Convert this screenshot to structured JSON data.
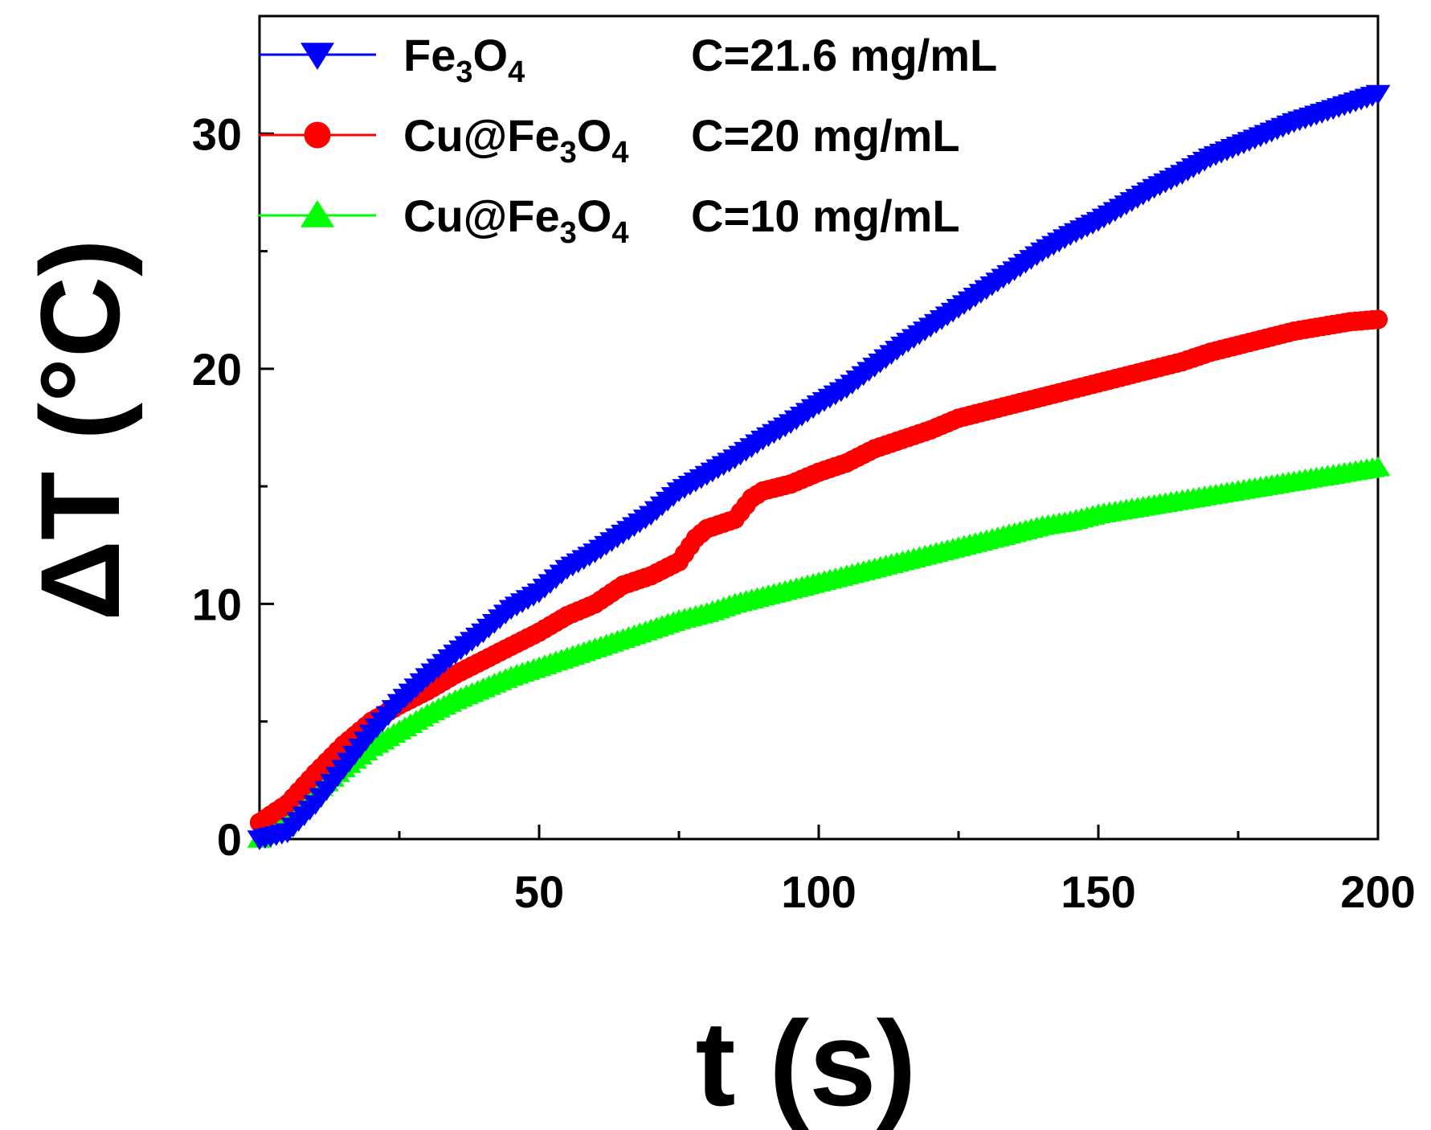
{
  "chart_data": {
    "type": "line",
    "xlabel": "t (s)",
    "ylabel": "ΔT (°C)",
    "xlim": [
      0,
      200
    ],
    "ylim": [
      0,
      35
    ],
    "x_ticks": [
      50,
      100,
      150,
      200
    ],
    "x_tick_labels": [
      "50",
      "100",
      "150",
      "200"
    ],
    "x_minor_ticks": [
      25,
      75,
      125,
      175
    ],
    "y_ticks": [
      0,
      10,
      20,
      30
    ],
    "y_tick_labels": [
      "0",
      "10",
      "20",
      "30"
    ],
    "y_minor_ticks": [
      5,
      15,
      25
    ],
    "grid": false,
    "legend_position": "top-left",
    "series": [
      {
        "name": "Fe3O4",
        "legend_label": {
          "base": "Fe",
          "sub1": "3",
          "mid": "O",
          "sub2": "4"
        },
        "concentration": "C=21.6 mg/mL",
        "color": "#0000ff",
        "marker": "triangle-down",
        "x": [
          0,
          5,
          10,
          15,
          20,
          25,
          30,
          35,
          40,
          45,
          50,
          55,
          60,
          65,
          70,
          75,
          80,
          85,
          90,
          95,
          100,
          105,
          110,
          115,
          120,
          125,
          130,
          135,
          140,
          145,
          150,
          155,
          160,
          165,
          170,
          175,
          180,
          185,
          190,
          195,
          200
        ],
        "y": [
          0,
          0.3,
          1.5,
          3.0,
          4.5,
          5.8,
          6.9,
          7.9,
          8.8,
          9.8,
          10.5,
          11.5,
          12.2,
          13.0,
          13.8,
          14.8,
          15.5,
          16.2,
          17.0,
          17.7,
          18.5,
          19.2,
          20.1,
          21.0,
          21.8,
          22.6,
          23.4,
          24.2,
          25.0,
          25.7,
          26.3,
          27.0,
          27.7,
          28.3,
          29.0,
          29.5,
          30.0,
          30.5,
          30.9,
          31.3,
          31.7
        ]
      },
      {
        "name": "Cu@Fe3O4 20",
        "legend_label": {
          "base": "Cu@Fe",
          "sub1": "3",
          "mid": "O",
          "sub2": "4"
        },
        "concentration": "C=20 mg/mL",
        "color": "#ff0000",
        "marker": "circle",
        "x": [
          0,
          5,
          10,
          15,
          20,
          25,
          30,
          35,
          40,
          45,
          50,
          55,
          60,
          65,
          70,
          75,
          78,
          80,
          85,
          88,
          90,
          95,
          100,
          105,
          110,
          115,
          120,
          125,
          130,
          135,
          140,
          145,
          150,
          155,
          160,
          165,
          170,
          175,
          180,
          185,
          190,
          195,
          200
        ],
        "y": [
          0.7,
          1.5,
          2.8,
          4.0,
          5.0,
          5.7,
          6.3,
          7.0,
          7.6,
          8.2,
          8.8,
          9.5,
          10.0,
          10.8,
          11.2,
          11.8,
          12.8,
          13.2,
          13.6,
          14.5,
          14.8,
          15.1,
          15.6,
          16.0,
          16.6,
          17.0,
          17.4,
          17.9,
          18.2,
          18.5,
          18.8,
          19.1,
          19.4,
          19.7,
          20.0,
          20.3,
          20.7,
          21.0,
          21.3,
          21.6,
          21.8,
          22.0,
          22.1
        ]
      },
      {
        "name": "Cu@Fe3O4 10",
        "legend_label": {
          "base": "Cu@Fe",
          "sub1": "3",
          "mid": "O",
          "sub2": "4"
        },
        "concentration": "C=10 mg/mL",
        "color": "#00ff00",
        "marker": "triangle-up",
        "x": [
          0,
          5,
          10,
          15,
          20,
          25,
          30,
          35,
          40,
          45,
          50,
          55,
          60,
          65,
          70,
          75,
          80,
          85,
          90,
          95,
          100,
          105,
          110,
          115,
          120,
          125,
          130,
          135,
          140,
          145,
          150,
          155,
          160,
          165,
          170,
          175,
          180,
          185,
          190,
          195,
          200
        ],
        "y": [
          0,
          0.8,
          2.0,
          3.0,
          3.9,
          4.6,
          5.3,
          5.9,
          6.4,
          6.9,
          7.3,
          7.7,
          8.1,
          8.5,
          8.9,
          9.3,
          9.6,
          10.0,
          10.3,
          10.6,
          10.9,
          11.2,
          11.5,
          11.8,
          12.1,
          12.4,
          12.7,
          13.0,
          13.3,
          13.5,
          13.8,
          14.0,
          14.2,
          14.4,
          14.6,
          14.8,
          15.0,
          15.2,
          15.4,
          15.6,
          15.8
        ]
      }
    ]
  }
}
